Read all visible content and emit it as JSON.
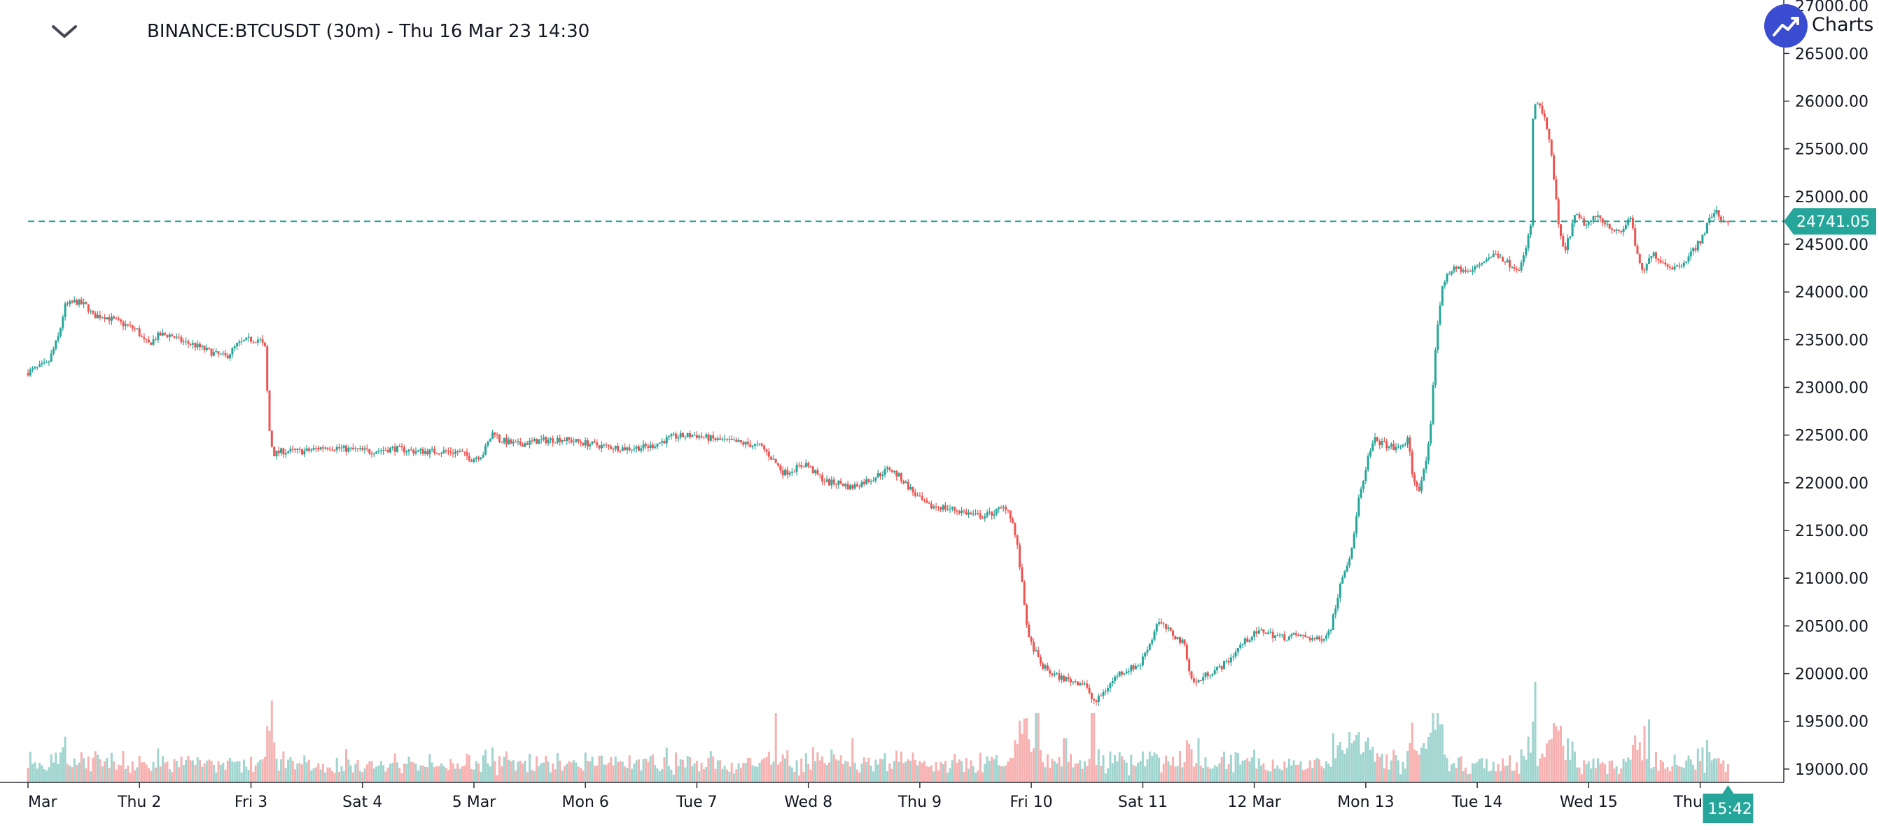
{
  "header": {
    "symbol_title": "BINANCE:BTCUSDT (30m) - Thu 16 Mar 23 14:30",
    "brand_text": "Charts |"
  },
  "colors": {
    "up": "#26a69a",
    "down": "#ef5350",
    "up_volume": "#9fd4cf",
    "down_volume": "#f6b1b0",
    "price_line": "#26a69a",
    "axis_line": "#2a2e39",
    "brand": "#3a4ccf"
  },
  "chart_data": {
    "type": "candlestick",
    "timeframe": "30m",
    "y_axis": {
      "ticks": [
        "27000.00",
        "26500.00",
        "26000.00",
        "25500.00",
        "25000.00",
        "24500.00",
        "24000.00",
        "23500.00",
        "23000.00",
        "22500.00",
        "22000.00",
        "21500.00",
        "21000.00",
        "20500.00",
        "20000.00",
        "19500.00",
        "19000.00"
      ],
      "range": [
        18860,
        27060
      ]
    },
    "x_axis": {
      "ticks": [
        "Mar",
        "Thu 2",
        "Fri 3",
        "Sat 4",
        "5 Mar",
        "Mon 6",
        "Tue 7",
        "Wed 8",
        "Thu 9",
        "Fri 10",
        "Sat 11",
        "12 Mar",
        "Mon 13",
        "Tue 14",
        "Wed 15",
        "Thu 16"
      ],
      "range_days": [
        0,
        15.75
      ]
    },
    "last_price": 24741.05,
    "last_price_label": "24741.05",
    "time_label": "15:42",
    "price_path": [
      [
        0.0,
        23150
      ],
      [
        0.1,
        23200
      ],
      [
        0.2,
        23250
      ],
      [
        0.3,
        23550
      ],
      [
        0.35,
        23850
      ],
      [
        0.45,
        23900
      ],
      [
        0.55,
        23850
      ],
      [
        0.6,
        23750
      ],
      [
        0.7,
        23750
      ],
      [
        0.8,
        23700
      ],
      [
        0.9,
        23650
      ],
      [
        1.0,
        23600
      ],
      [
        1.05,
        23500
      ],
      [
        1.1,
        23450
      ],
      [
        1.2,
        23550
      ],
      [
        1.3,
        23550
      ],
      [
        1.4,
        23480
      ],
      [
        1.5,
        23450
      ],
      [
        1.6,
        23400
      ],
      [
        1.7,
        23350
      ],
      [
        1.8,
        23320
      ],
      [
        1.9,
        23450
      ],
      [
        2.0,
        23500
      ],
      [
        2.1,
        23500
      ],
      [
        2.15,
        23400
      ],
      [
        2.18,
        22600
      ],
      [
        2.22,
        22300
      ],
      [
        2.3,
        22330
      ],
      [
        2.5,
        22330
      ],
      [
        2.7,
        22380
      ],
      [
        2.9,
        22350
      ],
      [
        3.1,
        22330
      ],
      [
        3.3,
        22360
      ],
      [
        3.5,
        22330
      ],
      [
        3.7,
        22330
      ],
      [
        3.9,
        22320
      ],
      [
        4.0,
        22250
      ],
      [
        4.1,
        22300
      ],
      [
        4.2,
        22550
      ],
      [
        4.25,
        22450
      ],
      [
        4.4,
        22400
      ],
      [
        4.6,
        22440
      ],
      [
        4.8,
        22460
      ],
      [
        5.0,
        22420
      ],
      [
        5.2,
        22380
      ],
      [
        5.4,
        22360
      ],
      [
        5.6,
        22380
      ],
      [
        5.8,
        22480
      ],
      [
        6.0,
        22500
      ],
      [
        6.2,
        22450
      ],
      [
        6.4,
        22420
      ],
      [
        6.6,
        22380
      ],
      [
        6.7,
        22250
      ],
      [
        6.8,
        22100
      ],
      [
        6.9,
        22150
      ],
      [
        7.0,
        22200
      ],
      [
        7.1,
        22080
      ],
      [
        7.2,
        22000
      ],
      [
        7.3,
        22000
      ],
      [
        7.4,
        21950
      ],
      [
        7.5,
        22000
      ],
      [
        7.6,
        22050
      ],
      [
        7.75,
        22150
      ],
      [
        7.85,
        22050
      ],
      [
        8.0,
        21850
      ],
      [
        8.1,
        21750
      ],
      [
        8.2,
        21750
      ],
      [
        8.4,
        21700
      ],
      [
        8.5,
        21660
      ],
      [
        8.6,
        21650
      ],
      [
        8.7,
        21700
      ],
      [
        8.8,
        21750
      ],
      [
        8.85,
        21600
      ],
      [
        8.9,
        21300
      ],
      [
        8.95,
        20800
      ],
      [
        9.0,
        20350
      ],
      [
        9.05,
        20250
      ],
      [
        9.1,
        20100
      ],
      [
        9.2,
        20000
      ],
      [
        9.3,
        19950
      ],
      [
        9.4,
        19920
      ],
      [
        9.5,
        19900
      ],
      [
        9.55,
        19750
      ],
      [
        9.6,
        19700
      ],
      [
        9.7,
        19850
      ],
      [
        9.8,
        20000
      ],
      [
        9.9,
        20050
      ],
      [
        10.0,
        20100
      ],
      [
        10.05,
        20250
      ],
      [
        10.1,
        20350
      ],
      [
        10.15,
        20550
      ],
      [
        10.2,
        20500
      ],
      [
        10.3,
        20400
      ],
      [
        10.4,
        20300
      ],
      [
        10.45,
        19950
      ],
      [
        10.5,
        19900
      ],
      [
        10.6,
        20000
      ],
      [
        10.7,
        20050
      ],
      [
        10.8,
        20150
      ],
      [
        10.9,
        20300
      ],
      [
        11.0,
        20400
      ],
      [
        11.1,
        20450
      ],
      [
        11.2,
        20400
      ],
      [
        11.3,
        20380
      ],
      [
        11.4,
        20400
      ],
      [
        11.5,
        20380
      ],
      [
        11.6,
        20350
      ],
      [
        11.7,
        20450
      ],
      [
        11.75,
        20700
      ],
      [
        11.8,
        21000
      ],
      [
        11.9,
        21300
      ],
      [
        11.95,
        21800
      ],
      [
        12.0,
        22000
      ],
      [
        12.05,
        22300
      ],
      [
        12.1,
        22450
      ],
      [
        12.2,
        22400
      ],
      [
        12.3,
        22350
      ],
      [
        12.4,
        22450
      ],
      [
        12.45,
        22000
      ],
      [
        12.5,
        21950
      ],
      [
        12.55,
        22150
      ],
      [
        12.6,
        22500
      ],
      [
        12.65,
        23500
      ],
      [
        12.7,
        24000
      ],
      [
        12.75,
        24200
      ],
      [
        12.85,
        24250
      ],
      [
        12.95,
        24200
      ],
      [
        13.0,
        24250
      ],
      [
        13.1,
        24350
      ],
      [
        13.2,
        24400
      ],
      [
        13.3,
        24300
      ],
      [
        13.4,
        24250
      ],
      [
        13.45,
        24400
      ],
      [
        13.5,
        24700
      ],
      [
        13.52,
        25800
      ],
      [
        13.55,
        26000
      ],
      [
        13.6,
        25900
      ],
      [
        13.65,
        25700
      ],
      [
        13.7,
        25300
      ],
      [
        13.75,
        24700
      ],
      [
        13.8,
        24400
      ],
      [
        13.85,
        24600
      ],
      [
        13.9,
        24800
      ],
      [
        14.0,
        24700
      ],
      [
        14.1,
        24800
      ],
      [
        14.2,
        24700
      ],
      [
        14.3,
        24600
      ],
      [
        14.4,
        24800
      ],
      [
        14.45,
        24400
      ],
      [
        14.5,
        24200
      ],
      [
        14.55,
        24300
      ],
      [
        14.6,
        24400
      ],
      [
        14.7,
        24300
      ],
      [
        14.8,
        24250
      ],
      [
        14.9,
        24350
      ],
      [
        15.0,
        24500
      ],
      [
        15.05,
        24600
      ],
      [
        15.1,
        24750
      ],
      [
        15.15,
        24850
      ],
      [
        15.2,
        24780
      ],
      [
        15.25,
        24741
      ]
    ],
    "volume_spikes": [
      [
        2.18,
        0.65
      ],
      [
        6.7,
        0.55
      ],
      [
        9.05,
        0.55
      ],
      [
        9.3,
        0.35
      ],
      [
        9.55,
        0.55
      ],
      [
        11.85,
        0.4
      ],
      [
        12.6,
        0.55
      ],
      [
        12.65,
        0.55
      ],
      [
        13.52,
        0.8
      ],
      [
        13.75,
        0.45
      ],
      [
        14.5,
        0.45
      ],
      [
        14.55,
        0.5
      ],
      [
        7.4,
        0.35
      ],
      [
        10.5,
        0.35
      ]
    ]
  }
}
